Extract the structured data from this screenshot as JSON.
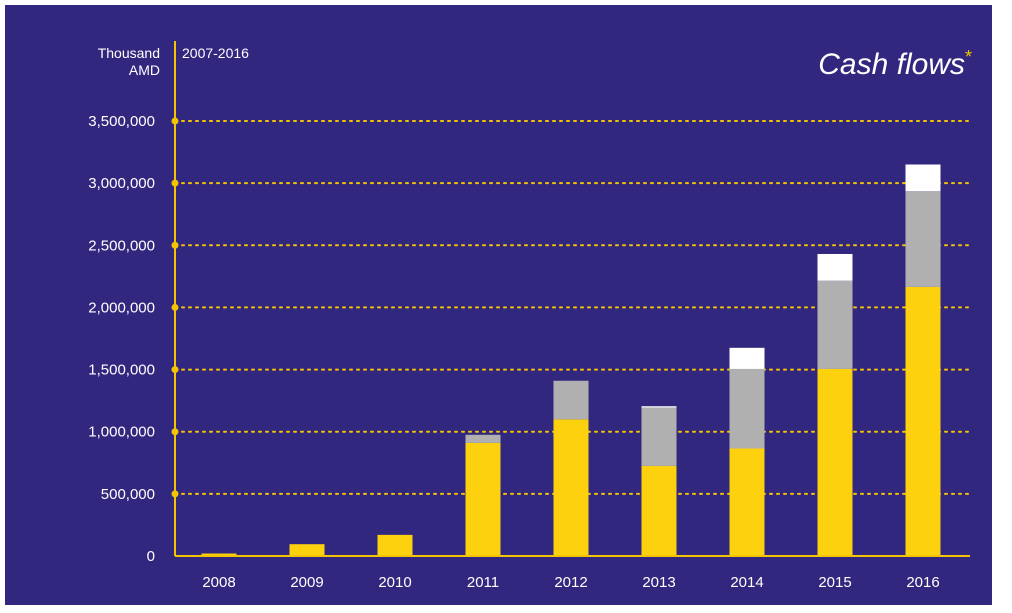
{
  "chart_data": {
    "type": "bar",
    "stacked": true,
    "title": "Cash flows",
    "title_mark": "*",
    "subtitle": "2007-2016",
    "ylabel": "Thousand AMD",
    "ylabel_lines": [
      "Thousand",
      "AMD"
    ],
    "categories": [
      "2008",
      "2009",
      "2010",
      "2011",
      "2012",
      "2013",
      "2014",
      "2015",
      "2016"
    ],
    "series": [
      {
        "color": "#fdd10d",
        "values": [
          20000,
          95000,
          170000,
          910000,
          1100000,
          725000,
          865000,
          1505000,
          2165000
        ]
      },
      {
        "color": "#b0b0b0",
        "values": [
          0,
          0,
          0,
          65000,
          310000,
          470000,
          640000,
          710000,
          770000
        ]
      },
      {
        "color": "#ffffff",
        "values": [
          0,
          0,
          0,
          0,
          0,
          10000,
          170000,
          215000,
          215000
        ]
      }
    ],
    "ylim": [
      0,
      3500000
    ],
    "yticks": [
      0,
      500000,
      1000000,
      1500000,
      2000000,
      2500000,
      3000000,
      3500000
    ],
    "ytick_labels": [
      "0",
      "500,000",
      "1,000,000",
      "1,500,000",
      "2,000,000",
      "2,500,000",
      "3,000,000",
      "3,500,000"
    ],
    "grid": true,
    "colors": {
      "background": "#32277f",
      "axis": "#f5c400",
      "text": "#ffffff"
    }
  }
}
